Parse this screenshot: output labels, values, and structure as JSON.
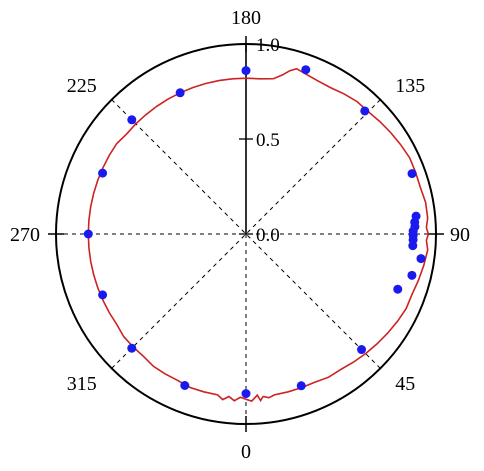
{
  "chart_data": {
    "type": "scatter",
    "subtype": "polar",
    "title": "",
    "angular_axis": {
      "unit": "degrees",
      "zero_location": "bottom",
      "direction": "counterclockwise",
      "tick_labels": [
        {
          "angle": 0,
          "label": "0"
        },
        {
          "angle": 45,
          "label": "45"
        },
        {
          "angle": 90,
          "label": "90"
        },
        {
          "angle": 135,
          "label": "135"
        },
        {
          "angle": 180,
          "label": "180"
        },
        {
          "angle": 225,
          "label": "225"
        },
        {
          "angle": 270,
          "label": "270"
        },
        {
          "angle": 315,
          "label": "315"
        }
      ]
    },
    "radial_axis": {
      "range": [
        0,
        1.0
      ],
      "tick_labels": [
        {
          "value": 0.0,
          "label": "0.0"
        },
        {
          "value": 0.5,
          "label": "0.5"
        },
        {
          "value": 1.0,
          "label": "1.0"
        }
      ]
    },
    "grid": true,
    "series": [
      {
        "kind": "line",
        "color": "#cc2222",
        "points": [
          {
            "angle": 0,
            "r": 0.87
          },
          {
            "angle": 2,
            "r": 0.88
          },
          {
            "angle": 4,
            "r": 0.85
          },
          {
            "angle": 5,
            "r": 0.88
          },
          {
            "angle": 6,
            "r": 0.86
          },
          {
            "angle": 8,
            "r": 0.87
          },
          {
            "angle": 10,
            "r": 0.86
          },
          {
            "angle": 15,
            "r": 0.86
          },
          {
            "angle": 20,
            "r": 0.86
          },
          {
            "angle": 25,
            "r": 0.86
          },
          {
            "angle": 30,
            "r": 0.87
          },
          {
            "angle": 35,
            "r": 0.87
          },
          {
            "angle": 40,
            "r": 0.88
          },
          {
            "angle": 45,
            "r": 0.89
          },
          {
            "angle": 50,
            "r": 0.9
          },
          {
            "angle": 55,
            "r": 0.91
          },
          {
            "angle": 60,
            "r": 0.92
          },
          {
            "angle": 65,
            "r": 0.93
          },
          {
            "angle": 70,
            "r": 0.93
          },
          {
            "angle": 75,
            "r": 0.94
          },
          {
            "angle": 80,
            "r": 0.95
          },
          {
            "angle": 85,
            "r": 0.96
          },
          {
            "angle": 88,
            "r": 0.95
          },
          {
            "angle": 90,
            "r": 0.96
          },
          {
            "angle": 92,
            "r": 0.95
          },
          {
            "angle": 95,
            "r": 0.96
          },
          {
            "angle": 100,
            "r": 0.96
          },
          {
            "angle": 105,
            "r": 0.95
          },
          {
            "angle": 110,
            "r": 0.95
          },
          {
            "angle": 115,
            "r": 0.95
          },
          {
            "angle": 120,
            "r": 0.94
          },
          {
            "angle": 125,
            "r": 0.93
          },
          {
            "angle": 130,
            "r": 0.92
          },
          {
            "angle": 135,
            "r": 0.91
          },
          {
            "angle": 140,
            "r": 0.91
          },
          {
            "angle": 145,
            "r": 0.9
          },
          {
            "angle": 150,
            "r": 0.89
          },
          {
            "angle": 155,
            "r": 0.89
          },
          {
            "angle": 160,
            "r": 0.9
          },
          {
            "angle": 163,
            "r": 0.91
          },
          {
            "angle": 165,
            "r": 0.89
          },
          {
            "angle": 167,
            "r": 0.86
          },
          {
            "angle": 170,
            "r": 0.83
          },
          {
            "angle": 175,
            "r": 0.82
          },
          {
            "angle": 180,
            "r": 0.82
          },
          {
            "angle": 185,
            "r": 0.82
          },
          {
            "angle": 190,
            "r": 0.82
          },
          {
            "angle": 195,
            "r": 0.82
          },
          {
            "angle": 200,
            "r": 0.82
          },
          {
            "angle": 205,
            "r": 0.82
          },
          {
            "angle": 210,
            "r": 0.82
          },
          {
            "angle": 215,
            "r": 0.82
          },
          {
            "angle": 220,
            "r": 0.82
          },
          {
            "angle": 225,
            "r": 0.82
          },
          {
            "angle": 230,
            "r": 0.82
          },
          {
            "angle": 235,
            "r": 0.83
          },
          {
            "angle": 240,
            "r": 0.83
          },
          {
            "angle": 245,
            "r": 0.83
          },
          {
            "angle": 250,
            "r": 0.83
          },
          {
            "angle": 255,
            "r": 0.83
          },
          {
            "angle": 260,
            "r": 0.83
          },
          {
            "angle": 265,
            "r": 0.83
          },
          {
            "angle": 270,
            "r": 0.83
          },
          {
            "angle": 275,
            "r": 0.83
          },
          {
            "angle": 280,
            "r": 0.83
          },
          {
            "angle": 285,
            "r": 0.83
          },
          {
            "angle": 290,
            "r": 0.83
          },
          {
            "angle": 295,
            "r": 0.83
          },
          {
            "angle": 300,
            "r": 0.83
          },
          {
            "angle": 305,
            "r": 0.83
          },
          {
            "angle": 310,
            "r": 0.84
          },
          {
            "angle": 315,
            "r": 0.84
          },
          {
            "angle": 320,
            "r": 0.84
          },
          {
            "angle": 325,
            "r": 0.85
          },
          {
            "angle": 330,
            "r": 0.85
          },
          {
            "angle": 335,
            "r": 0.85
          },
          {
            "angle": 340,
            "r": 0.86
          },
          {
            "angle": 345,
            "r": 0.86
          },
          {
            "angle": 350,
            "r": 0.86
          },
          {
            "angle": 352,
            "r": 0.88
          },
          {
            "angle": 354,
            "r": 0.86
          },
          {
            "angle": 356,
            "r": 0.88
          },
          {
            "angle": 358,
            "r": 0.86
          },
          {
            "angle": 360,
            "r": 0.87
          }
        ]
      },
      {
        "kind": "points",
        "color": "#1a1aee",
        "points": [
          {
            "angle": 0,
            "r": 0.84
          },
          {
            "angle": 20,
            "r": 0.85
          },
          {
            "angle": 45,
            "r": 0.86
          },
          {
            "angle": 70,
            "r": 0.85
          },
          {
            "angle": 76,
            "r": 0.9
          },
          {
            "angle": 82,
            "r": 0.93
          },
          {
            "angle": 86,
            "r": 0.88
          },
          {
            "angle": 88,
            "r": 0.88
          },
          {
            "angle": 89.5,
            "r": 0.88
          },
          {
            "angle": 91,
            "r": 0.88
          },
          {
            "angle": 92.5,
            "r": 0.89
          },
          {
            "angle": 94,
            "r": 0.89
          },
          {
            "angle": 96,
            "r": 0.9
          },
          {
            "angle": 110,
            "r": 0.93
          },
          {
            "angle": 136,
            "r": 0.9
          },
          {
            "angle": 160,
            "r": 0.92
          },
          {
            "angle": 180,
            "r": 0.86
          },
          {
            "angle": 205,
            "r": 0.82
          },
          {
            "angle": 225,
            "r": 0.85
          },
          {
            "angle": 247,
            "r": 0.82
          },
          {
            "angle": 270,
            "r": 0.83
          },
          {
            "angle": 293,
            "r": 0.82
          },
          {
            "angle": 315,
            "r": 0.85
          },
          {
            "angle": 338,
            "r": 0.86
          }
        ]
      }
    ]
  }
}
